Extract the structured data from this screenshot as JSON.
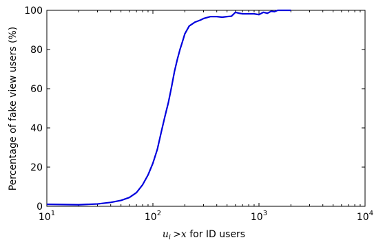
{
  "chart_data": {
    "type": "line",
    "xscale": "log",
    "xlim": [
      10,
      10000
    ],
    "ylim": [
      0,
      100
    ],
    "xticks": [
      10,
      100,
      1000,
      10000
    ],
    "xtick_labels": [
      {
        "base": "10",
        "exp": "1"
      },
      {
        "base": "10",
        "exp": "2"
      },
      {
        "base": "10",
        "exp": "3"
      },
      {
        "base": "10",
        "exp": "4"
      }
    ],
    "yticks": [
      0,
      20,
      40,
      60,
      80,
      100
    ],
    "ytick_labels": [
      "0",
      "20",
      "40",
      "60",
      "80",
      "100"
    ],
    "ylabel": "Percentage of fake view users (%)",
    "xlabel": {
      "math_u": "u",
      "math_sub": "i",
      "math_gt": ">",
      "math_x": "x",
      "text": " for ID users"
    },
    "grid": false,
    "line_color": "#0000dd",
    "series": [
      {
        "x": [
          10,
          20,
          30,
          40,
          50,
          60,
          70,
          80,
          90,
          100,
          110,
          120,
          130,
          140,
          150,
          160,
          170,
          180,
          190,
          200,
          220,
          250,
          280,
          300,
          350,
          400,
          450,
          500,
          550,
          600,
          650,
          700,
          800,
          900,
          1000,
          1100,
          1200,
          1300,
          1400,
          1500,
          2000
        ],
        "y": [
          1,
          0.8,
          1.2,
          2,
          3,
          4.5,
          7,
          11,
          16,
          22,
          29,
          38,
          46,
          53,
          61,
          69,
          75,
          80,
          84,
          88,
          92,
          94,
          95,
          95.8,
          96.8,
          96.8,
          96.5,
          96.8,
          97,
          99,
          98.5,
          98.2,
          98.2,
          98.2,
          97.8,
          99,
          98.5,
          99.5,
          99.3,
          100,
          100
        ]
      }
    ]
  }
}
